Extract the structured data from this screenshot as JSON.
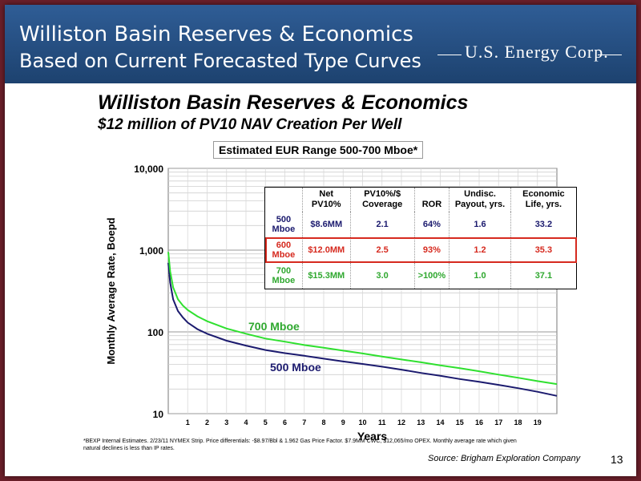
{
  "header": {
    "title_line1": "Williston Basin Reserves & Economics",
    "title_line2": "Based on Current Forecasted Type Curves",
    "logo": "U.S. Energy Corp."
  },
  "slide": {
    "title": "Williston Basin Reserves & Economics",
    "subtitle": "$12 million of PV10 NAV Creation Per Well",
    "footnote": "*BEXP Internal Estimates. 2/23/11 NYMEX Strip.  Price differentials: -$8.97/Bbl & 1.962 Gas Price Factor. $7.9MM CWC, $12,065/mo OPEX. Monthly average rate which given natural declines is less than IP rates.",
    "source": "Source: Brigham Exploration Company",
    "page_number": "13"
  },
  "colors": {
    "series_500": "#1b1a6e",
    "series_600": "#d62a1f",
    "series_700": "#2fe02f",
    "header": "#2a5590"
  },
  "econ_table": {
    "headers": [
      "",
      "Net PV10%",
      "PV10%/$ Coverage",
      "ROR",
      "Undisc. Payout, yrs.",
      "Economic Life, yrs."
    ],
    "rows": [
      {
        "label": "500 Mboe",
        "cells": [
          "$8.6MM",
          "2.1",
          "64%",
          "1.6",
          "33.2"
        ],
        "color": "#1b1a6e"
      },
      {
        "label": "600 Mboe",
        "cells": [
          "$12.0MM",
          "2.5",
          "93%",
          "1.2",
          "35.3"
        ],
        "color": "#d62a1f"
      },
      {
        "label": "700 Mboe",
        "cells": [
          "$15.3MM",
          "3.0",
          ">100%",
          "1.0",
          "37.1"
        ],
        "color": "#2fa82f"
      }
    ]
  },
  "chart_data": {
    "type": "line",
    "title": "Estimated EUR Range 500-700 Mboe*",
    "xlabel": "Years",
    "ylabel": "Monthly Average Rate, Boepd",
    "xlim": [
      0,
      20
    ],
    "ylim": [
      10,
      10000
    ],
    "yscale": "log",
    "x_ticks": [
      1,
      2,
      3,
      4,
      5,
      6,
      7,
      8,
      9,
      10,
      11,
      12,
      13,
      14,
      15,
      16,
      17,
      18,
      19
    ],
    "y_ticks": [
      10,
      100,
      1000,
      10000
    ],
    "y_tick_labels": [
      "10",
      "100",
      "1,000",
      "10,000"
    ],
    "grid": true,
    "series": [
      {
        "name": "500 Mboe",
        "color": "#1b1a6e",
        "x": [
          0,
          0.1,
          0.25,
          0.5,
          0.75,
          1,
          1.5,
          2,
          3,
          4,
          5,
          6,
          7,
          8,
          9,
          10,
          11,
          12,
          13,
          14,
          15,
          16,
          17,
          18,
          19,
          20
        ],
        "y": [
          700,
          400,
          250,
          180,
          150,
          130,
          108,
          95,
          78,
          68,
          60,
          55,
          51,
          47,
          43.5,
          40.5,
          37.5,
          34.5,
          31.5,
          29,
          26.5,
          24.5,
          22.5,
          20.5,
          18.5,
          16.5
        ]
      },
      {
        "name": "700 Mboe",
        "color": "#2fe02f",
        "x": [
          0,
          0.1,
          0.25,
          0.5,
          0.75,
          1,
          1.5,
          2,
          3,
          4,
          5,
          6,
          7,
          8,
          9,
          10,
          11,
          12,
          13,
          14,
          15,
          16,
          17,
          18,
          19,
          20
        ],
        "y": [
          950,
          550,
          350,
          250,
          210,
          185,
          155,
          135,
          110,
          95,
          83,
          76,
          69,
          64,
          59,
          54.5,
          50,
          46,
          42.5,
          39,
          36,
          33,
          30,
          27.5,
          25,
          23
        ]
      }
    ]
  }
}
